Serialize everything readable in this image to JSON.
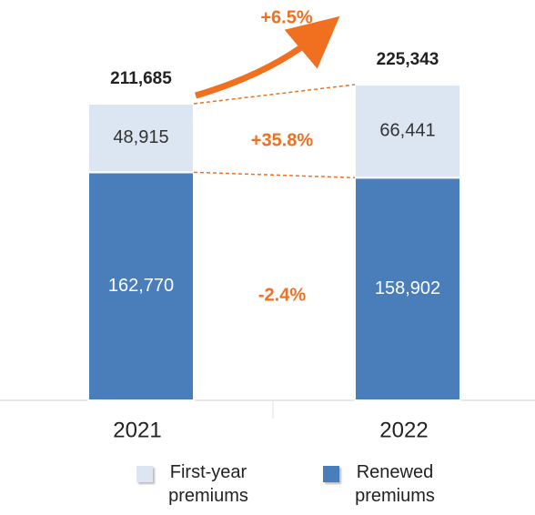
{
  "chart_data": {
    "type": "stacked_bar",
    "categories": [
      "2021",
      "2022"
    ],
    "series": [
      {
        "name": "Renewed premiums",
        "color": "#4a7ebb",
        "values": [
          162770,
          158902
        ],
        "value_labels": [
          "162,770",
          "158,902"
        ]
      },
      {
        "name": "First-year premiums",
        "color": "#dce6f2",
        "values": [
          48915,
          66441
        ],
        "value_labels": [
          "48,915",
          "66,441"
        ]
      }
    ],
    "totals": [
      211685,
      225343
    ],
    "total_labels": [
      "211,685",
      "225,343"
    ],
    "annotations": {
      "total_change": "+6.5%",
      "first_year_change": "+35.8%",
      "renewed_change": "-2.4%"
    },
    "ylim": [
      0,
      250000
    ]
  }
}
